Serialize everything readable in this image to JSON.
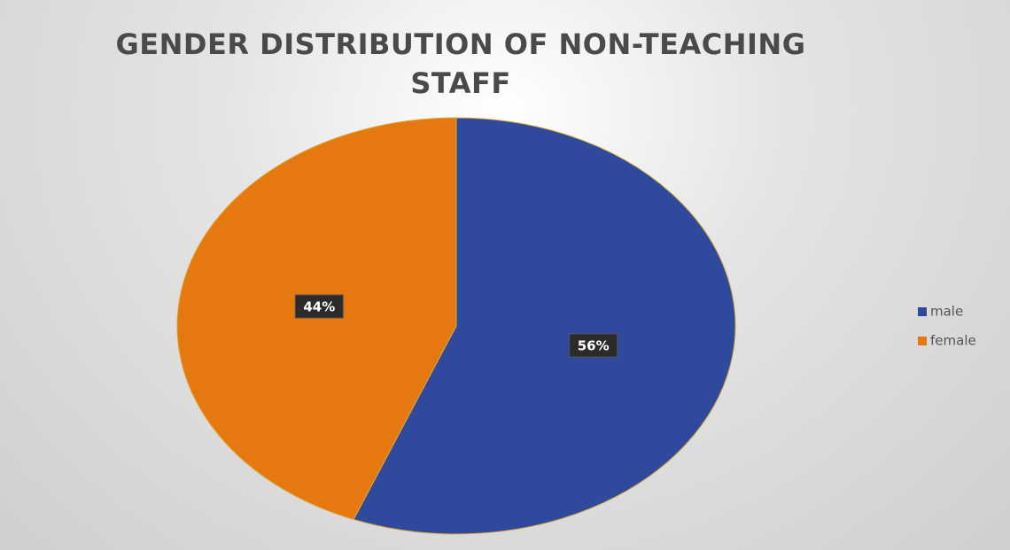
{
  "chart_data": {
    "type": "pie",
    "title": "GENDER DISTRIBUTION OF NON-TEACHING STAFF",
    "categories": [
      "male",
      "female"
    ],
    "values": [
      56,
      44
    ],
    "value_labels": [
      "56%",
      "44%"
    ],
    "colors": [
      "#2f4a9c",
      "#e5780f"
    ],
    "legend": "right"
  }
}
